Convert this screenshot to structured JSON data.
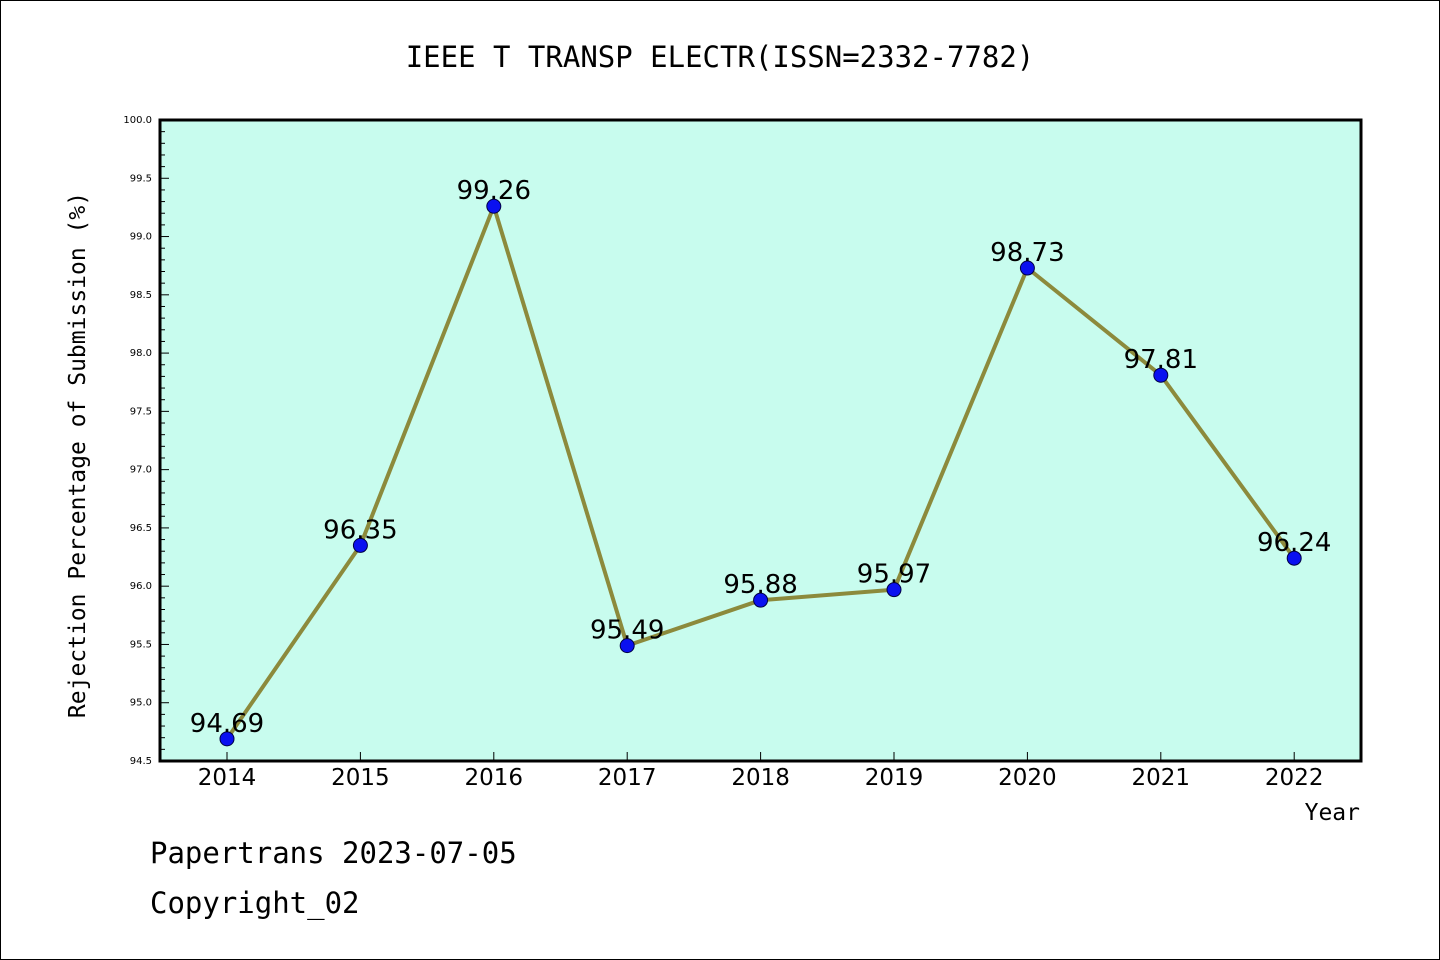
{
  "chart_data": {
    "type": "line",
    "title": "IEEE T TRANSP ELECTR(ISSN=2332-7782)",
    "xlabel": "Year",
    "ylabel": "Rejection Percentage of Submission (%)",
    "categories": [
      "2014",
      "2015",
      "2016",
      "2017",
      "2018",
      "2019",
      "2020",
      "2021",
      "2022"
    ],
    "values": [
      94.69,
      96.35,
      99.26,
      95.49,
      95.88,
      95.97,
      98.73,
      97.81,
      96.24
    ],
    "data_labels": [
      "94.69",
      "96.35",
      "99.26",
      "95.49",
      "95.88",
      "95.97",
      "98.73",
      "97.81",
      "96.24"
    ],
    "ylim": [
      94.5,
      100.0
    ],
    "yticks": [
      "94.5",
      "95.0",
      "95.5",
      "96.0",
      "96.5",
      "97.0",
      "97.5",
      "98.0",
      "98.5",
      "99.0",
      "99.5",
      "100.0"
    ],
    "grid": false,
    "colors": {
      "plot_background": "#c8fcee",
      "line": "#8c8a3c",
      "marker": "#0a10f0"
    }
  },
  "footer": {
    "line1": "Papertrans 2023-07-05",
    "line2": "Copyright_02"
  }
}
